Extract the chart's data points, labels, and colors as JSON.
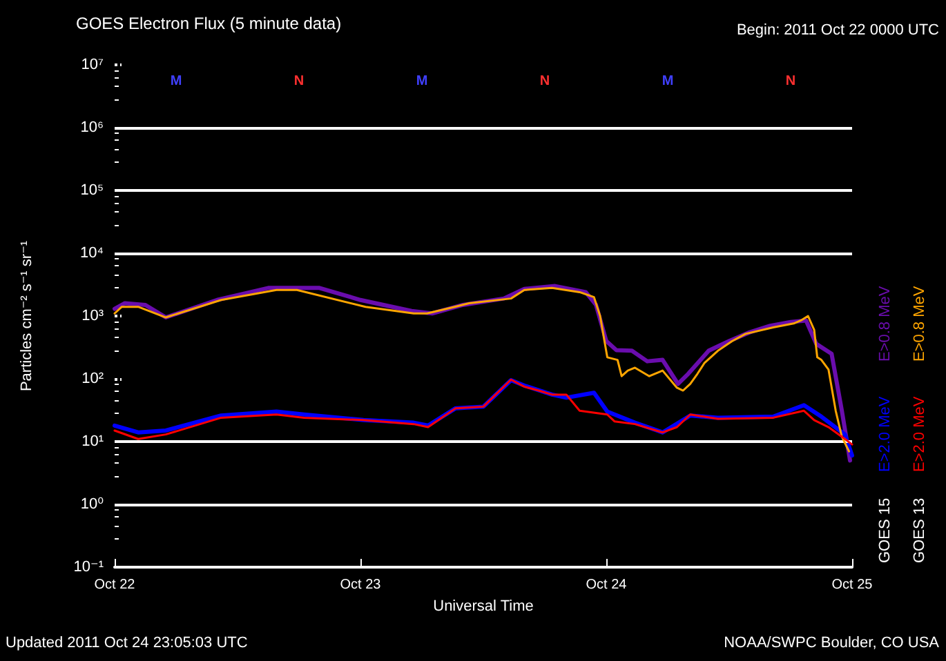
{
  "chart_data": {
    "type": "line",
    "title": "GOES Electron Flux (5 minute data)",
    "xlabel": "Universal Time",
    "ylabel": "Particles cm⁻² s⁻¹ sr⁻¹",
    "log": true,
    "xlim": [
      "2011-10-22",
      "2011-10-25"
    ],
    "xticks": [
      {
        "value": "2011-10-22",
        "label": "Oct 22"
      },
      {
        "value": "2011-10-23",
        "label": "Oct 23"
      },
      {
        "value": "2011-10-24",
        "label": "Oct 24"
      },
      {
        "value": "2011-10-25",
        "label": "Oct 25"
      }
    ],
    "ylim": [
      0.1,
      10000000
    ],
    "yticks": [
      {
        "value": 0.1,
        "label": "10⁻¹"
      },
      {
        "value": 1,
        "label": "10⁰"
      },
      {
        "value": 10,
        "label": "10¹"
      },
      {
        "value": 100,
        "label": "10²"
      },
      {
        "value": 1000,
        "label": "10³"
      },
      {
        "value": 10000,
        "label": "10⁴"
      },
      {
        "value": 100000,
        "label": "10⁵"
      },
      {
        "value": 1000000,
        "label": "10⁶"
      },
      {
        "value": 10000000,
        "label": "10⁷"
      }
    ],
    "ref_lines": [
      {
        "axis": "y",
        "value": 1000000,
        "color": "#ffffff"
      },
      {
        "axis": "y",
        "value": 100000,
        "color": "#ffffff"
      },
      {
        "axis": "y",
        "value": 10000,
        "color": "#ffffff"
      },
      {
        "axis": "y",
        "value": 10,
        "color": "#ffffff"
      },
      {
        "axis": "y",
        "value": 1,
        "color": "#ffffff"
      }
    ],
    "legend": "right",
    "series": [
      {
        "name": "E>0.8 MeV",
        "color": "#6a0dad",
        "x": [
          "2011-10-22T00:00",
          "2011-10-22T01:00",
          "2011-10-22T03:00",
          "2011-10-22T05:00",
          "2011-10-22T10:00",
          "2011-10-22T15:00",
          "2011-10-22T20:00",
          "2011-10-23T00:00",
          "2011-10-23T05:00",
          "2011-10-23T07:00",
          "2011-10-23T10:00",
          "2011-10-23T14:00",
          "2011-10-23T16:00",
          "2011-10-23T19:00",
          "2011-10-23T22:00",
          "2011-10-23T23:00",
          "2011-10-24T00:00",
          "2011-10-24T01:00",
          "2011-10-24T02:30",
          "2011-10-24T04:00",
          "2011-10-24T05:30",
          "2011-10-24T07:00",
          "2011-10-24T08:00",
          "2011-10-24T10:00",
          "2011-10-24T12:00",
          "2011-10-24T14:00",
          "2011-10-24T16:00",
          "2011-10-24T18:00",
          "2011-10-24T19:30",
          "2011-10-24T20:30",
          "2011-10-24T22:00",
          "2011-10-24T23:00",
          "2011-10-24T23:48"
        ],
        "values": [
          1300,
          1600,
          1500,
          950,
          1800,
          2800,
          2800,
          1800,
          1200,
          1100,
          1500,
          1900,
          2700,
          3000,
          2400,
          1500,
          400,
          285,
          280,
          190,
          200,
          83,
          120,
          280,
          400,
          550,
          700,
          800,
          850,
          360,
          250,
          31,
          5
        ]
      },
      {
        "name": "E>2.0 MeV",
        "color": "#0000ff",
        "x": [
          "2011-10-22T00:00",
          "2011-10-22T02:18",
          "2011-10-22T05:00",
          "2011-10-22T10:24",
          "2011-10-22T15:48",
          "2011-10-22T18:30",
          "2011-10-23T00:18",
          "2011-10-23T05:12",
          "2011-10-23T06:36",
          "2011-10-23T09:18",
          "2011-10-23T12:00",
          "2011-10-23T14:42",
          "2011-10-23T16:00",
          "2011-10-23T18:42",
          "2011-10-23T20:06",
          "2011-10-23T22:48",
          "2011-10-24T00:06",
          "2011-10-24T02:48",
          "2011-10-24T05:30",
          "2011-10-24T08:12",
          "2011-10-24T10:54",
          "2011-10-24T16:18",
          "2011-10-24T19:18",
          "2011-10-24T21:00",
          "2011-10-24T23:18",
          "2011-10-25T00:00"
        ],
        "values": [
          18,
          14,
          15,
          26,
          30,
          27,
          22,
          20,
          18,
          34,
          36,
          95,
          78,
          56,
          50,
          60,
          30,
          20,
          14,
          26,
          24,
          25,
          38,
          25,
          13,
          6
        ]
      },
      {
        "name": "E>0.8 MeV",
        "color": "#ffa500",
        "x": [
          "2011-10-22T00:00",
          "2011-10-22T00:42",
          "2011-10-22T02:18",
          "2011-10-22T05:00",
          "2011-10-22T10:24",
          "2011-10-22T15:48",
          "2011-10-22T17:48",
          "2011-10-23T00:30",
          "2011-10-23T05:12",
          "2011-10-23T06:30",
          "2011-10-23T09:12",
          "2011-10-23T10:36",
          "2011-10-23T14:42",
          "2011-10-23T16:00",
          "2011-10-23T18:42",
          "2011-10-23T21:24",
          "2011-10-23T22:48",
          "2011-10-23T23:24",
          "2011-10-24T00:06",
          "2011-10-24T01:06",
          "2011-10-24T01:30",
          "2011-10-24T02:06",
          "2011-10-24T02:48",
          "2011-10-24T04:12",
          "2011-10-24T05:30",
          "2011-10-24T06:54",
          "2011-10-24T07:30",
          "2011-10-24T08:12",
          "2011-10-24T08:54",
          "2011-10-24T09:36",
          "2011-10-24T10:54",
          "2011-10-24T12:18",
          "2011-10-24T13:36",
          "2011-10-24T16:18",
          "2011-10-24T18:18",
          "2011-10-24T19:00",
          "2011-10-24T19:42",
          "2011-10-24T20:18",
          "2011-10-24T20:36",
          "2011-10-24T21:00",
          "2011-10-24T21:42",
          "2011-10-24T22:24",
          "2011-10-24T23:00",
          "2011-10-24T23:42"
        ],
        "values": [
          1100,
          1400,
          1400,
          950,
          1800,
          2600,
          2600,
          1400,
          1100,
          1100,
          1400,
          1600,
          1900,
          2600,
          2800,
          2400,
          2000,
          1000,
          220,
          200,
          110,
          135,
          150,
          110,
          135,
          72,
          65,
          83,
          120,
          180,
          280,
          400,
          520,
          660,
          760,
          850,
          1000,
          600,
          220,
          200,
          140,
          31,
          12,
          7
        ]
      },
      {
        "name": "E>2.0 MeV",
        "color": "#ff0000",
        "x": [
          "2011-10-22T00:00",
          "2011-10-22T02:18",
          "2011-10-22T05:00",
          "2011-10-22T10:24",
          "2011-10-22T15:48",
          "2011-10-22T18:30",
          "2011-10-23T00:18",
          "2011-10-23T05:12",
          "2011-10-23T06:36",
          "2011-10-23T09:18",
          "2011-10-23T12:00",
          "2011-10-23T14:42",
          "2011-10-23T16:00",
          "2011-10-23T17:24",
          "2011-10-23T18:42",
          "2011-10-23T20:06",
          "2011-10-23T21:24",
          "2011-10-24T00:06",
          "2011-10-24T00:48",
          "2011-10-24T02:48",
          "2011-10-24T05:30",
          "2011-10-24T06:54",
          "2011-10-24T08:12",
          "2011-10-24T10:54",
          "2011-10-24T16:18",
          "2011-10-24T19:18",
          "2011-10-24T20:18",
          "2011-10-24T21:42",
          "2011-10-24T23:18",
          "2011-10-25T00:00"
        ],
        "values": [
          15,
          11,
          13,
          24,
          27,
          24,
          22,
          19,
          17,
          34,
          36,
          97,
          75,
          65,
          56,
          56,
          31,
          27,
          21,
          19,
          14,
          17,
          27,
          23,
          24,
          31,
          22,
          17,
          11,
          9
        ]
      }
    ],
    "annotations": [
      "Begin: 2011 Oct 22 0000 UTC",
      "Updated 2011 Oct 24 23:05:03 UTC",
      "NOAA/SWPC Boulder, CO USA",
      "GOES 15",
      "GOES 13",
      "M",
      "N",
      "M",
      "N",
      "M",
      "N"
    ]
  }
}
